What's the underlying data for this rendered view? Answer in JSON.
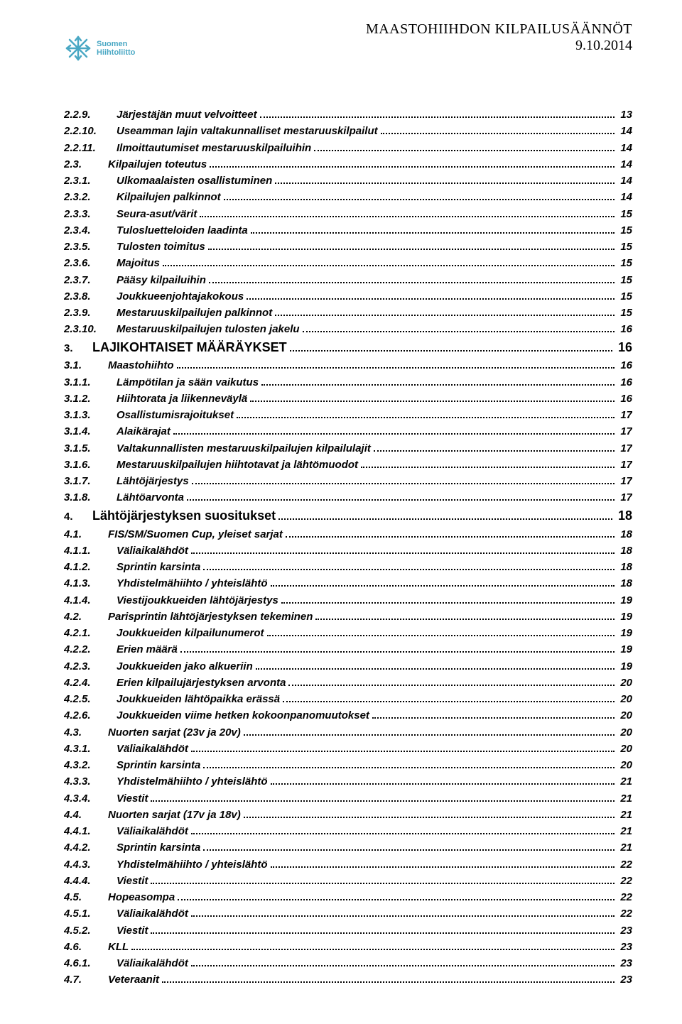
{
  "header": {
    "title": "MAASTOHIIHDON KILPAILUSÄÄNNÖT",
    "date": "9.10.2014"
  },
  "logo": {
    "line1": "Suomen",
    "line2": "Hiihtoliitto",
    "color": "#4aa8c4"
  },
  "toc": [
    {
      "num": "2.2.9.",
      "label": "Järjestäjän muut velvoitteet",
      "page": "13",
      "style": "bold-italic",
      "cls": "num-w-sub2"
    },
    {
      "num": "2.2.10.",
      "label": "Useamman lajin valtakunnalliset mestaruuskilpailut",
      "page": "14",
      "style": "bold-italic",
      "cls": "num-w-sub2"
    },
    {
      "num": "2.2.11.",
      "label": "Ilmoittautumiset mestaruuskilpailuihin",
      "page": "14",
      "style": "bold-italic",
      "cls": "num-w-sub2"
    },
    {
      "num": "2.3.",
      "label": "Kilpailujen toteutus",
      "page": "14",
      "style": "bold-italic",
      "cls": "num-w-sub"
    },
    {
      "num": "2.3.1.",
      "label": "Ulkomaalaisten osallistuminen",
      "page": "14",
      "style": "bold-italic",
      "cls": "num-w-sub2"
    },
    {
      "num": "2.3.2.",
      "label": "Kilpailujen palkinnot",
      "page": "14",
      "style": "bold-italic",
      "cls": "num-w-sub2"
    },
    {
      "num": "2.3.3.",
      "label": "Seura-asut/värit",
      "page": "15",
      "style": "bold-italic",
      "cls": "num-w-sub2"
    },
    {
      "num": "2.3.4.",
      "label": "Tulosluetteloiden laadinta",
      "page": "15",
      "style": "bold-italic",
      "cls": "num-w-sub2"
    },
    {
      "num": "2.3.5.",
      "label": "Tulosten toimitus",
      "page": "15",
      "style": "bold-italic",
      "cls": "num-w-sub2"
    },
    {
      "num": "2.3.6.",
      "label": "Majoitus",
      "page": "15",
      "style": "bold-italic",
      "cls": "num-w-sub2"
    },
    {
      "num": "2.3.7.",
      "label": "Pääsy kilpailuihin",
      "page": "15",
      "style": "bold-italic",
      "cls": "num-w-sub2"
    },
    {
      "num": "2.3.8.",
      "label": "Joukkueenjohtajakokous",
      "page": "15",
      "style": "bold-italic",
      "cls": "num-w-sub2"
    },
    {
      "num": "2.3.9.",
      "label": "Mestaruuskilpailujen palkinnot",
      "page": "15",
      "style": "bold-italic",
      "cls": "num-w-sub2"
    },
    {
      "num": "2.3.10.",
      "label": "Mestaruuskilpailujen tulosten jakelu",
      "page": "16",
      "style": "bold-italic",
      "cls": "num-w-sub2"
    },
    {
      "num": "3.",
      "label": "LAJIKOHTAISET MÄÄRÄYKSET",
      "page": "16",
      "style": "bold",
      "cls": "num-w-main",
      "section": true
    },
    {
      "num": "3.1.",
      "label": "Maastohiihto",
      "page": "16",
      "style": "bold-italic",
      "cls": "num-w-sub"
    },
    {
      "num": "3.1.1.",
      "label": "Lämpötilan ja sään vaikutus",
      "page": "16",
      "style": "bold-italic",
      "cls": "num-w-sub2"
    },
    {
      "num": "3.1.2.",
      "label": "Hiihtorata ja liikenneväylä",
      "page": "16",
      "style": "bold-italic",
      "cls": "num-w-sub2"
    },
    {
      "num": "3.1.3.",
      "label": "Osallistumisrajoitukset",
      "page": "17",
      "style": "bold-italic",
      "cls": "num-w-sub2"
    },
    {
      "num": "3.1.4.",
      "label": "Alaikärajat",
      "page": "17",
      "style": "bold-italic",
      "cls": "num-w-sub2"
    },
    {
      "num": "3.1.5.",
      "label": "Valtakunnallisten mestaruuskilpailujen kilpailulajit",
      "page": "17",
      "style": "bold-italic",
      "cls": "num-w-sub2"
    },
    {
      "num": "3.1.6.",
      "label": "Mestaruuskilpailujen hiihtotavat ja lähtömuodot",
      "page": "17",
      "style": "bold-italic",
      "cls": "num-w-sub2"
    },
    {
      "num": "3.1.7.",
      "label": "Lähtöjärjestys",
      "page": "17",
      "style": "bold-italic",
      "cls": "num-w-sub2"
    },
    {
      "num": "3.1.8.",
      "label": "Lähtöarvonta",
      "page": "17",
      "style": "bold-italic",
      "cls": "num-w-sub2"
    },
    {
      "num": "4.",
      "label": "Lähtöjärjestyksen suositukset",
      "page": "18",
      "style": "bold",
      "cls": "num-w-main",
      "section": true
    },
    {
      "num": "4.1.",
      "label": "FIS/SM/Suomen Cup, yleiset sarjat",
      "page": "18",
      "style": "bold-italic",
      "cls": "num-w-sub"
    },
    {
      "num": "4.1.1.",
      "label": "Väliaikalähdöt",
      "page": "18",
      "style": "bold-italic",
      "cls": "num-w-sub2"
    },
    {
      "num": "4.1.2.",
      "label": "Sprintin karsinta",
      "page": "18",
      "style": "bold-italic",
      "cls": "num-w-sub2"
    },
    {
      "num": "4.1.3.",
      "label": "Yhdistelmähiihto / yhteislähtö",
      "page": "18",
      "style": "bold-italic",
      "cls": "num-w-sub2"
    },
    {
      "num": "4.1.4.",
      "label": "Viestijoukkueiden lähtöjärjestys",
      "page": "19",
      "style": "bold-italic",
      "cls": "num-w-sub2"
    },
    {
      "num": "4.2.",
      "label": "Parisprintin lähtöjärjestyksen tekeminen",
      "page": "19",
      "style": "bold-italic",
      "cls": "num-w-sub"
    },
    {
      "num": "4.2.1.",
      "label": "Joukkueiden kilpailunumerot",
      "page": "19",
      "style": "bold-italic",
      "cls": "num-w-sub2"
    },
    {
      "num": "4.2.2.",
      "label": "Erien määrä",
      "page": "19",
      "style": "bold-italic",
      "cls": "num-w-sub2"
    },
    {
      "num": "4.2.3.",
      "label": "Joukkueiden jako alkueriin",
      "page": "19",
      "style": "bold-italic",
      "cls": "num-w-sub2"
    },
    {
      "num": "4.2.4.",
      "label": "Erien kilpailujärjestyksen arvonta",
      "page": "20",
      "style": "bold-italic",
      "cls": "num-w-sub2"
    },
    {
      "num": "4.2.5.",
      "label": "Joukkueiden lähtöpaikka erässä",
      "page": "20",
      "style": "bold-italic",
      "cls": "num-w-sub2"
    },
    {
      "num": "4.2.6.",
      "label": "Joukkueiden viime hetken kokoonpanomuutokset",
      "page": "20",
      "style": "bold-italic",
      "cls": "num-w-sub2"
    },
    {
      "num": "4.3.",
      "label": "Nuorten sarjat (23v ja 20v)",
      "page": "20",
      "style": "bold-italic",
      "cls": "num-w-sub"
    },
    {
      "num": "4.3.1.",
      "label": "Väliaikalähdöt",
      "page": "20",
      "style": "bold-italic",
      "cls": "num-w-sub2"
    },
    {
      "num": "4.3.2.",
      "label": "Sprintin karsinta",
      "page": "20",
      "style": "bold-italic",
      "cls": "num-w-sub2"
    },
    {
      "num": "4.3.3.",
      "label": "Yhdistelmähiihto / yhteislähtö",
      "page": "21",
      "style": "bold-italic",
      "cls": "num-w-sub2"
    },
    {
      "num": "4.3.4.",
      "label": "Viestit",
      "page": "21",
      "style": "bold-italic",
      "cls": "num-w-sub2"
    },
    {
      "num": "4.4.",
      "label": "Nuorten sarjat (17v ja 18v)",
      "page": "21",
      "style": "bold-italic",
      "cls": "num-w-sub"
    },
    {
      "num": "4.4.1.",
      "label": "Väliaikalähdöt",
      "page": "21",
      "style": "bold-italic",
      "cls": "num-w-sub2"
    },
    {
      "num": "4.4.2.",
      "label": "Sprintin karsinta",
      "page": "21",
      "style": "bold-italic",
      "cls": "num-w-sub2"
    },
    {
      "num": "4.4.3.",
      "label": "Yhdistelmähiihto / yhteislähtö",
      "page": "22",
      "style": "bold-italic",
      "cls": "num-w-sub2"
    },
    {
      "num": "4.4.4.",
      "label": "Viestit",
      "page": "22",
      "style": "bold-italic",
      "cls": "num-w-sub2"
    },
    {
      "num": "4.5.",
      "label": "Hopeasompa",
      "page": "22",
      "style": "bold-italic",
      "cls": "num-w-sub"
    },
    {
      "num": "4.5.1.",
      "label": "Väliaikalähdöt",
      "page": "22",
      "style": "bold-italic",
      "cls": "num-w-sub2"
    },
    {
      "num": "4.5.2.",
      "label": "Viestit",
      "page": "23",
      "style": "bold-italic",
      "cls": "num-w-sub2"
    },
    {
      "num": "4.6.",
      "label": "KLL",
      "page": "23",
      "style": "bold-italic",
      "cls": "num-w-sub"
    },
    {
      "num": "4.6.1.",
      "label": "Väliaikalähdöt",
      "page": "23",
      "style": "bold-italic",
      "cls": "num-w-sub2"
    },
    {
      "num": "4.7.",
      "label": "Veteraanit",
      "page": "23",
      "style": "bold-italic",
      "cls": "num-w-sub"
    }
  ]
}
